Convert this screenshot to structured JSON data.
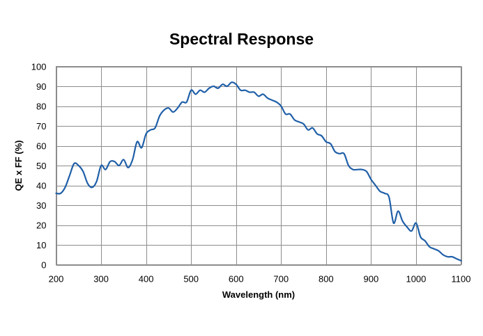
{
  "chart_data": {
    "type": "line",
    "title": "Spectral Response",
    "xlabel": "Wavelength (nm)",
    "ylabel": "QE x FF (%)",
    "xlim": [
      200,
      1100
    ],
    "ylim": [
      0,
      100
    ],
    "xticks": [
      200,
      300,
      400,
      500,
      600,
      700,
      800,
      900,
      1000,
      1100
    ],
    "yticks": [
      0,
      10,
      20,
      30,
      40,
      50,
      60,
      70,
      80,
      90,
      100
    ],
    "grid": true,
    "legend": "none",
    "line_color": "#1f5fa8",
    "series": [
      {
        "x": [
          200,
          210,
          220,
          230,
          240,
          250,
          260,
          270,
          280,
          290,
          300,
          310,
          320,
          330,
          340,
          350,
          360,
          370,
          380,
          390,
          400,
          410,
          420,
          430,
          440,
          450,
          460,
          470,
          480,
          490,
          500,
          510,
          520,
          530,
          540,
          550,
          560,
          570,
          580,
          590,
          600,
          610,
          620,
          630,
          640,
          650,
          660,
          670,
          680,
          690,
          700,
          710,
          720,
          730,
          740,
          750,
          760,
          770,
          780,
          790,
          800,
          810,
          820,
          830,
          840,
          850,
          860,
          870,
          880,
          890,
          900,
          910,
          920,
          930,
          940,
          950,
          960,
          970,
          980,
          990,
          1000,
          1010,
          1020,
          1030,
          1040,
          1050,
          1060,
          1070,
          1080,
          1090,
          1100
        ],
        "values": [
          36,
          36,
          39,
          45,
          51,
          50,
          47,
          41,
          39,
          42,
          50,
          48,
          52,
          52,
          50,
          53,
          49,
          53,
          62,
          59,
          66,
          68,
          69,
          75,
          78,
          79,
          77,
          79,
          82,
          82,
          88,
          86,
          88,
          87,
          89,
          90,
          89,
          91,
          90,
          92,
          91,
          88,
          88,
          87,
          87,
          85,
          86,
          84,
          83,
          82,
          80,
          76,
          76,
          73,
          72,
          71,
          68,
          69,
          66,
          65,
          62,
          61,
          57,
          56,
          56,
          50,
          48,
          48,
          48,
          47,
          43,
          40,
          37,
          36,
          34,
          21,
          27,
          22,
          19,
          17,
          21,
          14,
          12,
          9,
          8,
          7,
          5,
          4,
          4,
          3,
          2
        ]
      }
    ]
  }
}
